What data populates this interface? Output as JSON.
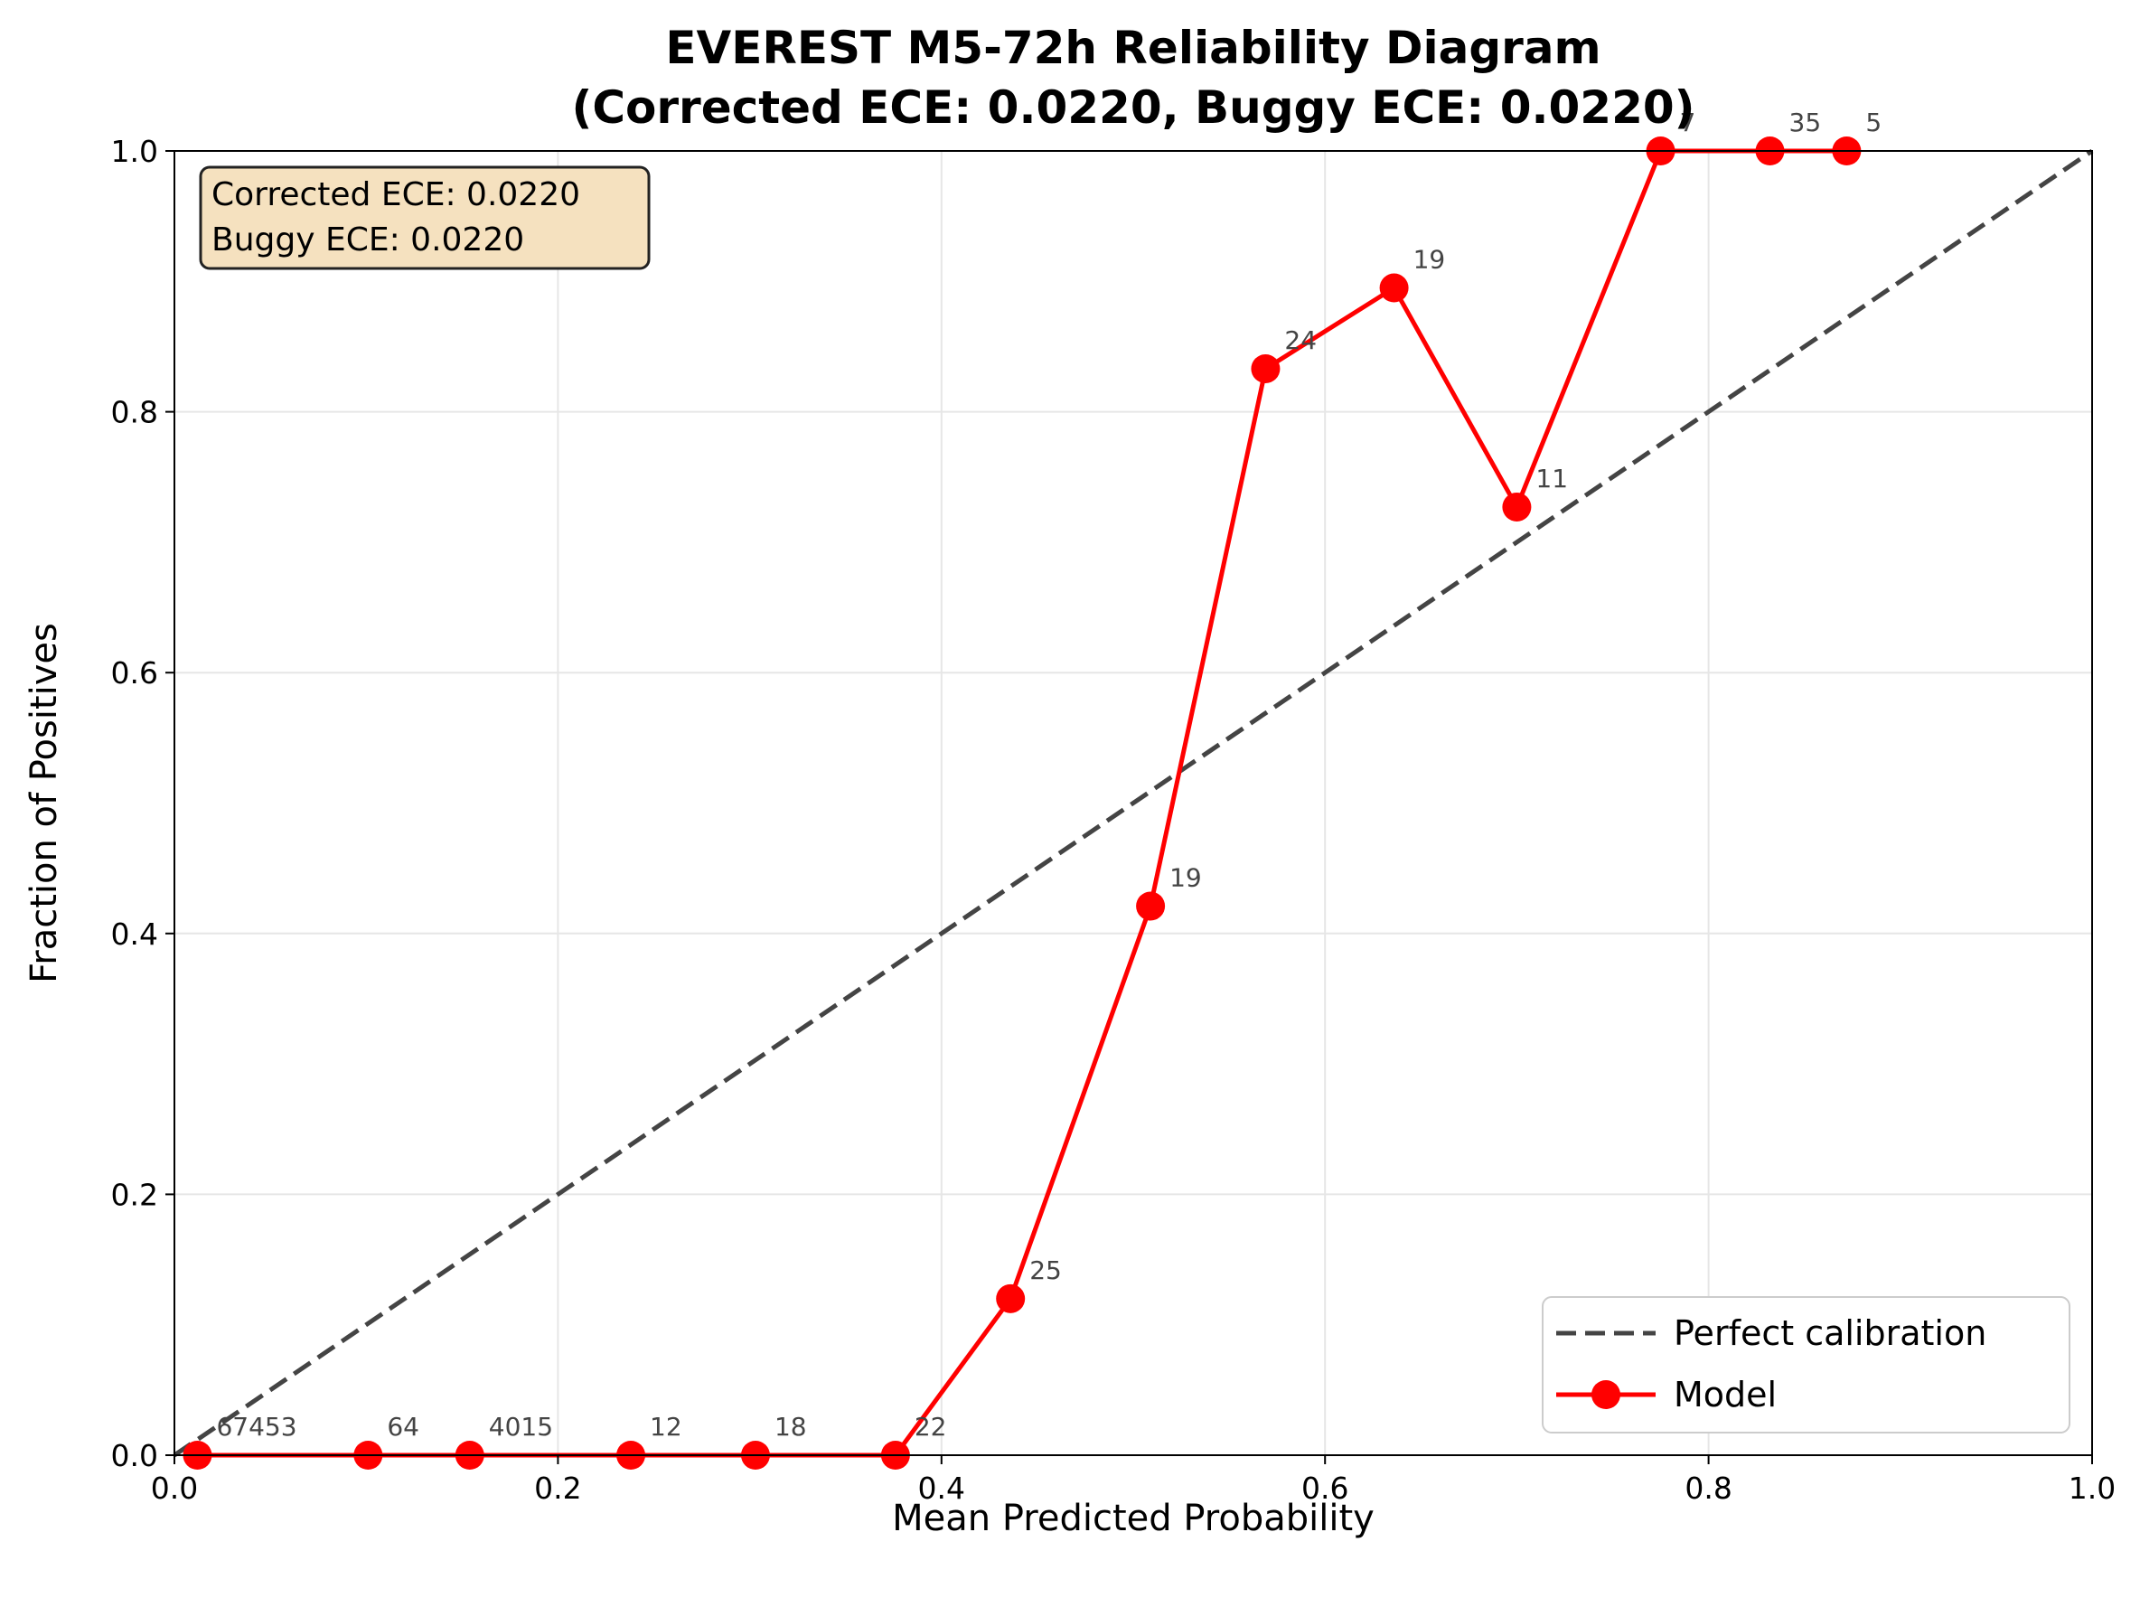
{
  "chart_data": {
    "type": "line",
    "title": "EVEREST M5-72h Reliability Diagram\n(Corrected ECE: 0.0220, Buggy ECE: 0.0220)",
    "title_lines": [
      "EVEREST M5-72h Reliability Diagram",
      "(Corrected ECE: 0.0220, Buggy ECE: 0.0220)"
    ],
    "xlabel": "Mean Predicted Probability",
    "ylabel": "Fraction of Positives",
    "xlim": [
      0.0,
      1.0
    ],
    "ylim": [
      0.0,
      1.0
    ],
    "xticks": [
      0.0,
      0.2,
      0.4,
      0.6,
      0.8,
      1.0
    ],
    "yticks": [
      0.0,
      0.2,
      0.4,
      0.6,
      0.8,
      1.0
    ],
    "xtick_labels": [
      "0.0",
      "0.2",
      "0.4",
      "0.6",
      "0.8",
      "1.0"
    ],
    "ytick_labels": [
      "0.0",
      "0.2",
      "0.4",
      "0.6",
      "0.8",
      "1.0"
    ],
    "grid": true,
    "legend_position": "bottom-right",
    "series": [
      {
        "name": "Perfect calibration",
        "style": "dashed",
        "color": "#444444",
        "x": [
          0.0,
          1.0
        ],
        "y": [
          0.0,
          1.0
        ]
      },
      {
        "name": "Model",
        "style": "solid-with-markers",
        "color": "#ff0000",
        "x": [
          0.012,
          0.101,
          0.154,
          0.238,
          0.303,
          0.376,
          0.436,
          0.509,
          0.569,
          0.636,
          0.7,
          0.775,
          0.832,
          0.872
        ],
        "y": [
          0.0,
          0.0,
          0.0,
          0.0,
          0.0,
          0.0,
          0.12,
          0.421,
          0.833,
          0.895,
          0.727,
          1.0,
          1.0,
          1.0
        ],
        "counts": [
          "67453",
          "64",
          "4015",
          "12",
          "18",
          "22",
          "25",
          "19",
          "24",
          "19",
          "11",
          "7",
          "35",
          "5"
        ]
      }
    ],
    "annotation_box": {
      "lines": [
        "Corrected ECE: 0.0220",
        "Buggy ECE: 0.0220"
      ],
      "position": "top-left",
      "background": "#f5e1bf"
    }
  }
}
